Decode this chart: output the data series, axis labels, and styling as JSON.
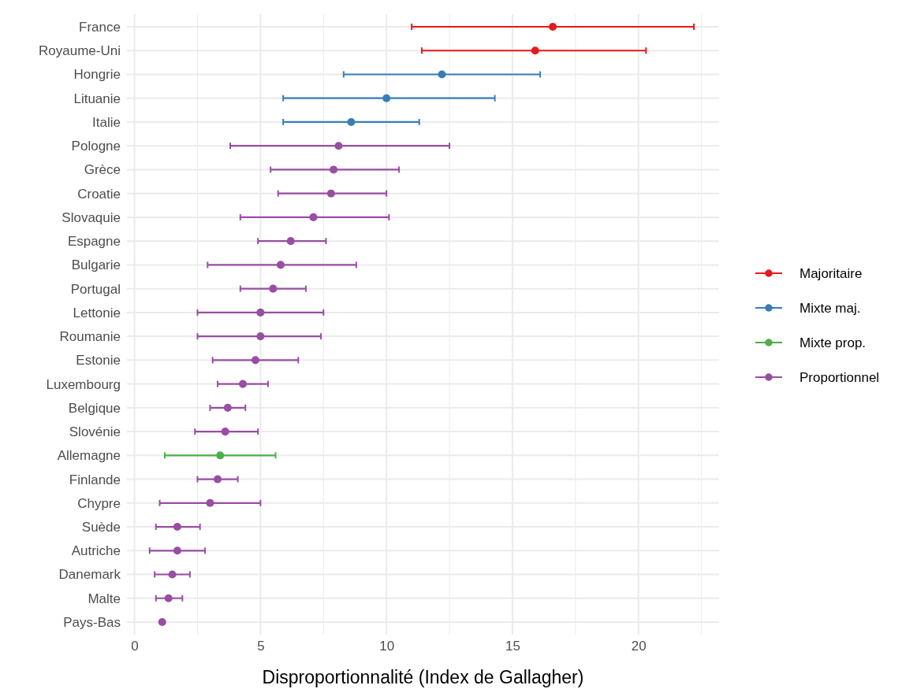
{
  "chart_data": {
    "type": "scatter",
    "orientation": "horizontal",
    "xlabel": "Disproportionnalité (Index de Gallagher)",
    "categories": [
      "France",
      "Royaume-Uni",
      "Hongrie",
      "Lituanie",
      "Italie",
      "Pologne",
      "Grèce",
      "Croatie",
      "Slovaquie",
      "Espagne",
      "Bulgarie",
      "Portugal",
      "Lettonie",
      "Roumanie",
      "Estonie",
      "Luxembourg",
      "Belgique",
      "Slovénie",
      "Allemagne",
      "Finlande",
      "Chypre",
      "Suède",
      "Autriche",
      "Danemark",
      "Malte",
      "Pays-Bas"
    ],
    "series": [
      {
        "name": "Majoritaire",
        "color": "#e41a1c",
        "values": [
          16.6,
          15.9,
          null,
          null,
          null,
          null,
          null,
          null,
          null,
          null,
          null,
          null,
          null,
          null,
          null,
          null,
          null,
          null,
          null,
          null,
          null,
          null,
          null,
          null,
          null,
          null
        ],
        "errors": [
          [
            11.0,
            22.2
          ],
          [
            11.4,
            20.3
          ],
          null,
          null,
          null,
          null,
          null,
          null,
          null,
          null,
          null,
          null,
          null,
          null,
          null,
          null,
          null,
          null,
          null,
          null,
          null,
          null,
          null,
          null,
          null,
          null
        ]
      },
      {
        "name": "Mixte maj.",
        "color": "#377eb8",
        "values": [
          null,
          null,
          12.2,
          10.0,
          8.6,
          null,
          null,
          null,
          null,
          null,
          null,
          null,
          null,
          null,
          null,
          null,
          null,
          null,
          null,
          null,
          null,
          null,
          null,
          null,
          null,
          null
        ],
        "errors": [
          null,
          null,
          [
            8.3,
            16.1
          ],
          [
            5.9,
            14.3
          ],
          [
            5.9,
            11.3
          ],
          null,
          null,
          null,
          null,
          null,
          null,
          null,
          null,
          null,
          null,
          null,
          null,
          null,
          null,
          null,
          null,
          null,
          null,
          null,
          null,
          null
        ]
      },
      {
        "name": "Mixte prop.",
        "color": "#4daf4a",
        "values": [
          null,
          null,
          null,
          null,
          null,
          null,
          null,
          null,
          null,
          null,
          null,
          null,
          null,
          null,
          null,
          null,
          null,
          null,
          3.4,
          null,
          null,
          null,
          null,
          null,
          null,
          null
        ],
        "errors": [
          null,
          null,
          null,
          null,
          null,
          null,
          null,
          null,
          null,
          null,
          null,
          null,
          null,
          null,
          null,
          null,
          null,
          null,
          [
            1.2,
            5.6
          ],
          null,
          null,
          null,
          null,
          null,
          null,
          null
        ]
      },
      {
        "name": "Proportionnel",
        "color": "#984ea3",
        "values": [
          null,
          null,
          null,
          null,
          null,
          8.1,
          7.9,
          7.8,
          7.1,
          6.2,
          5.8,
          5.5,
          5.0,
          5.0,
          4.8,
          4.3,
          3.7,
          3.6,
          null,
          3.3,
          3.0,
          1.7,
          1.7,
          1.5,
          1.35,
          1.1
        ],
        "errors": [
          null,
          null,
          null,
          null,
          null,
          [
            3.8,
            12.5
          ],
          [
            5.4,
            10.5
          ],
          [
            5.7,
            10.0
          ],
          [
            4.2,
            10.1
          ],
          [
            4.9,
            7.6
          ],
          [
            2.9,
            8.8
          ],
          [
            4.2,
            6.8
          ],
          [
            2.5,
            7.5
          ],
          [
            2.5,
            7.4
          ],
          [
            3.1,
            6.5
          ],
          [
            3.3,
            5.3
          ],
          [
            3.0,
            4.4
          ],
          [
            2.4,
            4.9
          ],
          null,
          [
            2.5,
            4.1
          ],
          [
            1.0,
            5.0
          ],
          [
            0.85,
            2.6
          ],
          [
            0.6,
            2.8
          ],
          [
            0.8,
            2.2
          ],
          [
            0.85,
            1.9
          ],
          null
        ]
      }
    ],
    "xlim": [
      -0.3,
      23.2
    ],
    "xticks": [
      0,
      {
        "value": 2.5,
        "label": null
      },
      5,
      {
        "value": 7.5,
        "label": null
      },
      10,
      {
        "value": 12.5,
        "label": null
      },
      15,
      {
        "value": 17.5,
        "label": null
      },
      20,
      {
        "value": 22.5,
        "label": null
      }
    ],
    "grid": true,
    "legend": "right",
    "marker": "circle"
  }
}
